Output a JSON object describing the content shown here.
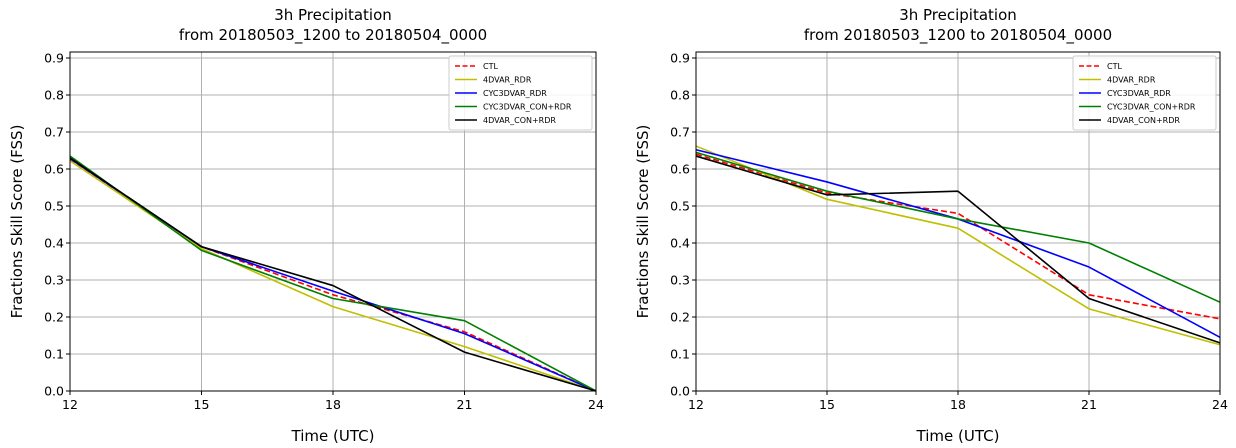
{
  "chart_data": [
    {
      "type": "line",
      "title": "3h Precipitation",
      "subtitle": "from 20180503_1200 to 20180504_0000",
      "xlabel": "Time (UTC)",
      "ylabel": "Fractions Skill Score (FSS)",
      "x": [
        12,
        15,
        18,
        21,
        24
      ],
      "xticks": [
        "12",
        "15",
        "18",
        "21",
        "24"
      ],
      "xlim": [
        12,
        24
      ],
      "yticks": [
        "0.0",
        "0.1",
        "0.2",
        "0.3",
        "0.4",
        "0.5",
        "0.6",
        "0.7",
        "0.8",
        "0.9"
      ],
      "ylim": [
        0,
        0.9
      ],
      "grid": true,
      "legend_position": "top-right",
      "series": [
        {
          "name": "CTL",
          "color": "#ff0000",
          "dashed": true,
          "values": [
            0.627,
            0.39,
            0.26,
            0.16,
            0.0
          ]
        },
        {
          "name": "4DVAR_RDR",
          "color": "#bfbf00",
          "dashed": false,
          "values": [
            0.622,
            0.385,
            0.228,
            0.12,
            0.0
          ]
        },
        {
          "name": "CYC3DVAR_RDR",
          "color": "#0000ff",
          "dashed": false,
          "values": [
            0.628,
            0.39,
            0.27,
            0.155,
            0.0
          ]
        },
        {
          "name": "CYC3DVAR_CON+RDR",
          "color": "#008000",
          "dashed": false,
          "values": [
            0.635,
            0.38,
            0.25,
            0.19,
            0.0
          ]
        },
        {
          "name": "4DVAR_CON+RDR",
          "color": "#000000",
          "dashed": false,
          "values": [
            0.63,
            0.39,
            0.285,
            0.105,
            0.0
          ]
        }
      ]
    },
    {
      "type": "line",
      "title": "3h Precipitation",
      "subtitle": "from 20180503_1200 to 20180504_0000",
      "xlabel": "Time (UTC)",
      "ylabel": "Fractions Skill Score (FSS)",
      "x": [
        12,
        15,
        18,
        21,
        24
      ],
      "xticks": [
        "12",
        "15",
        "18",
        "21",
        "24"
      ],
      "xlim": [
        12,
        24
      ],
      "yticks": [
        "0.0",
        "0.1",
        "0.2",
        "0.3",
        "0.4",
        "0.5",
        "0.6",
        "0.7",
        "0.8",
        "0.9"
      ],
      "ylim": [
        0,
        0.9
      ],
      "grid": true,
      "legend_position": "top-right",
      "series": [
        {
          "name": "CTL",
          "color": "#ff0000",
          "dashed": true,
          "values": [
            0.64,
            0.535,
            0.48,
            0.26,
            0.195
          ]
        },
        {
          "name": "4DVAR_RDR",
          "color": "#bfbf00",
          "dashed": false,
          "values": [
            0.662,
            0.518,
            0.44,
            0.222,
            0.125
          ]
        },
        {
          "name": "CYC3DVAR_RDR",
          "color": "#0000ff",
          "dashed": false,
          "values": [
            0.652,
            0.565,
            0.465,
            0.335,
            0.145
          ]
        },
        {
          "name": "CYC3DVAR_CON+RDR",
          "color": "#008000",
          "dashed": false,
          "values": [
            0.645,
            0.54,
            0.465,
            0.4,
            0.24
          ]
        },
        {
          "name": "4DVAR_CON+RDR",
          "color": "#000000",
          "dashed": false,
          "values": [
            0.635,
            0.53,
            0.54,
            0.25,
            0.13
          ]
        }
      ]
    }
  ]
}
